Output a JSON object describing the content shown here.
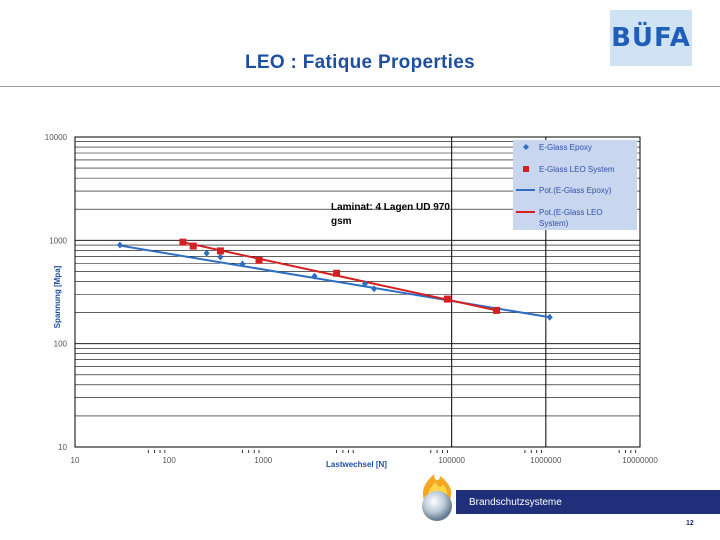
{
  "logo": {
    "text": "BÜFA"
  },
  "slide": {
    "title": "LEO : Fatique Properties",
    "footer": "Brandschutzsysteme",
    "page": "12"
  },
  "colors": {
    "epoxy": "#2e6fc4",
    "leo": "#d42020",
    "title": "#1f4f9f",
    "legend_bg": "#c9d6ef",
    "footer_bar": "#1f2f7a"
  },
  "chart_data": {
    "type": "scatter",
    "xscale": "log",
    "yscale": "log",
    "xlim": [
      10,
      10000000
    ],
    "ylim": [
      10,
      10000
    ],
    "xticks": [
      10,
      100,
      1000,
      10000,
      100000,
      1000000,
      10000000
    ],
    "xtick_labels": [
      "10",
      "100",
      "1000",
      "",
      "100000",
      "1000000",
      "10000000"
    ],
    "yticks": [
      10,
      100,
      1000,
      10000
    ],
    "ytick_labels": [
      "10",
      "100",
      "1000",
      "10000"
    ],
    "xlabel": "Lastwechsel [N]",
    "ylabel": "Spannung [Mpa]",
    "annotation": "Laminat: 4 Lagen UD 970 gsm",
    "grid": true,
    "legend_position": "top-right",
    "series": [
      {
        "name": "E-Glass Epoxy",
        "marker": "diamond",
        "color": "#2e6fc4",
        "x": [
          30,
          250,
          350,
          600,
          3500,
          12000,
          15000,
          1100000
        ],
        "y": [
          900,
          750,
          690,
          590,
          450,
          380,
          340,
          180
        ]
      },
      {
        "name": "E-Glass LEO System",
        "marker": "square",
        "color": "#d42020",
        "x": [
          140,
          180,
          350,
          900,
          6000,
          90000,
          300000
        ],
        "y": [
          960,
          880,
          790,
          640,
          480,
          270,
          210
        ]
      },
      {
        "name": "Pot.(E-Glass Epoxy)",
        "type": "trendline",
        "color": "#2e6fc4",
        "x": [
          30,
          1100000
        ],
        "y": [
          890,
          180
        ]
      },
      {
        "name": "Pot.(E-Glass LEO System)",
        "type": "trendline",
        "color": "#d42020",
        "x": [
          140,
          300000
        ],
        "y": [
          960,
          210
        ]
      }
    ]
  }
}
